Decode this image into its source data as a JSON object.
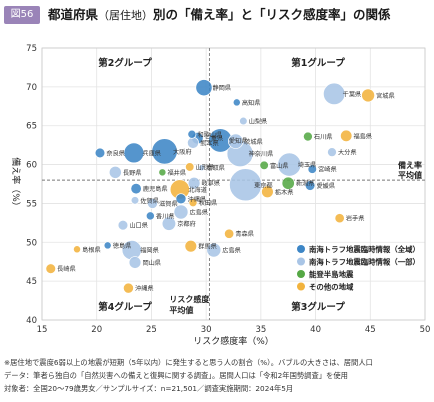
{
  "header": {
    "fig_label": "図56",
    "title_main": "都道府県",
    "title_paren": "（居住地）",
    "title_rest": "別の「備え率」と「リスク感度率」の関係"
  },
  "chart_data": {
    "type": "scatter",
    "title": "都道府県（居住地）別の「備え率」と「リスク感度率」の関係",
    "xlabel": "リスク感度率（%）",
    "ylabel": "備え率（%）",
    "xlim": [
      15,
      50
    ],
    "ylim": [
      40,
      75
    ],
    "xticks": [
      15,
      20,
      25,
      30,
      35,
      40,
      45,
      50
    ],
    "yticks": [
      40,
      45,
      50,
      55,
      60,
      65,
      70,
      75
    ],
    "grid": true,
    "legend_position": "bottom-right",
    "reference_lines": {
      "x": {
        "value": 30.3,
        "label_line1": "リスク感度",
        "label_line2": "平均値"
      },
      "y": {
        "value": 58,
        "label_line1": "備え率",
        "label_line2": "平均値"
      }
    },
    "quadrants": {
      "top_left": "第2グループ",
      "top_right": "第1グループ",
      "bottom_left": "第4グループ",
      "bottom_right": "第3グループ"
    },
    "series": [
      {
        "name": "南海トラフ地震臨時情報（全域）",
        "color": "#3d86c6"
      },
      {
        "name": "南海トラフ地震臨時情報（一部）",
        "color": "#a9c5e6"
      },
      {
        "name": "能登半島地震",
        "color": "#55a845"
      },
      {
        "name": "その他の地域",
        "color": "#f2b33d"
      }
    ],
    "points": [
      {
        "name": "静岡県",
        "x": 29.8,
        "y": 69.9,
        "size": 3.6,
        "group": 0
      },
      {
        "name": "千葉県",
        "x": 41.7,
        "y": 69.1,
        "size": 6.3,
        "group": 1
      },
      {
        "name": "宮城県",
        "x": 44.8,
        "y": 68.9,
        "size": 2.3,
        "group": 3
      },
      {
        "name": "高知県",
        "x": 32.8,
        "y": 68.0,
        "size": 0.7,
        "group": 0
      },
      {
        "name": "山梨県",
        "x": 33.4,
        "y": 65.6,
        "size": 0.8,
        "group": 1
      },
      {
        "name": "石川県",
        "x": 39.3,
        "y": 63.6,
        "size": 1.1,
        "group": 2
      },
      {
        "name": "福島県",
        "x": 42.8,
        "y": 63.7,
        "size": 1.8,
        "group": 3
      },
      {
        "name": "茨城県",
        "x": 32.7,
        "y": 63.0,
        "size": 2.9,
        "group": 1
      },
      {
        "name": "大分県",
        "x": 41.5,
        "y": 61.6,
        "size": 1.1,
        "group": 1
      },
      {
        "name": "和歌山県",
        "x": 28.7,
        "y": 63.9,
        "size": 0.9,
        "group": 0
      },
      {
        "name": "三重県",
        "x": 29.2,
        "y": 63.4,
        "size": 1.8,
        "group": 0
      },
      {
        "name": "熊本県",
        "x": 28.8,
        "y": 62.8,
        "size": 1.7,
        "group": 1
      },
      {
        "name": "大阪府",
        "x": 26.2,
        "y": 61.7,
        "size": 8.8,
        "group": 0
      },
      {
        "name": "愛知県",
        "x": 31.3,
        "y": 63.1,
        "size": 7.5,
        "group": 0
      },
      {
        "name": "奈良県",
        "x": 20.3,
        "y": 61.5,
        "size": 1.3,
        "group": 0
      },
      {
        "name": "兵庫県",
        "x": 23.4,
        "y": 61.5,
        "size": 5.4,
        "group": 0
      },
      {
        "name": "神奈川県",
        "x": 33.1,
        "y": 61.4,
        "size": 9.2,
        "group": 1
      },
      {
        "name": "埼玉県",
        "x": 37.6,
        "y": 60.0,
        "size": 7.3,
        "group": 1
      },
      {
        "name": "宮崎県",
        "x": 39.7,
        "y": 59.4,
        "size": 1.0,
        "group": 0
      },
      {
        "name": "富山県",
        "x": 35.3,
        "y": 59.9,
        "size": 1.0,
        "group": 2
      },
      {
        "name": "長野県",
        "x": 21.7,
        "y": 59.0,
        "size": 2.0,
        "group": 1
      },
      {
        "name": "東京都",
        "x": 33.6,
        "y": 57.4,
        "size": 14.0,
        "group": 1
      },
      {
        "name": "愛媛県",
        "x": 39.5,
        "y": 57.3,
        "size": 1.3,
        "group": 0
      },
      {
        "name": "新潟県",
        "x": 37.5,
        "y": 57.6,
        "size": 2.1,
        "group": 2
      },
      {
        "name": "栃木県",
        "x": 35.6,
        "y": 56.5,
        "size": 1.9,
        "group": 3
      },
      {
        "name": "福井県",
        "x": 26.0,
        "y": 59.0,
        "size": 0.7,
        "group": 2
      },
      {
        "name": "山形県",
        "x": 28.5,
        "y": 59.7,
        "size": 1.0,
        "group": 3
      },
      {
        "name": "鳥取県",
        "x": 29.6,
        "y": 59.6,
        "size": 0.5,
        "group": 1
      },
      {
        "name": "岐阜県",
        "x": 28.9,
        "y": 57.6,
        "size": 1.9,
        "group": 1
      },
      {
        "name": "北海道",
        "x": 27.6,
        "y": 56.8,
        "size": 5.1,
        "group": 3
      },
      {
        "name": "沖縄県",
        "x": 27.7,
        "y": 55.6,
        "size": 1.4,
        "group": 0
      },
      {
        "name": "秋田県",
        "x": 28.8,
        "y": 55.1,
        "size": 0.9,
        "group": 3
      },
      {
        "name": "滋賀県",
        "x": 25.1,
        "y": 55.0,
        "size": 1.4,
        "group": 1
      },
      {
        "name": "広島県",
        "x": 27.7,
        "y": 53.9,
        "size": 2.7,
        "group": 1
      },
      {
        "name": "鹿児島県",
        "x": 23.6,
        "y": 56.9,
        "size": 1.5,
        "group": 0
      },
      {
        "name": "佐賀県",
        "x": 23.5,
        "y": 55.4,
        "size": 0.8,
        "group": 1
      },
      {
        "name": "香川県",
        "x": 24.9,
        "y": 53.4,
        "size": 0.9,
        "group": 0
      },
      {
        "name": "京都府",
        "x": 26.6,
        "y": 52.4,
        "size": 2.5,
        "group": 1
      },
      {
        "name": "山口県",
        "x": 22.4,
        "y": 52.2,
        "size": 1.3,
        "group": 1
      },
      {
        "name": "岩手県",
        "x": 42.2,
        "y": 53.1,
        "size": 1.2,
        "group": 3
      },
      {
        "name": "青森県",
        "x": 32.1,
        "y": 51.1,
        "size": 1.2,
        "group": 3
      },
      {
        "name": "徳島県",
        "x": 21.0,
        "y": 49.6,
        "size": 0.7,
        "group": 0
      },
      {
        "name": "福岡県",
        "x": 23.2,
        "y": 49.0,
        "size": 5.1,
        "group": 1
      },
      {
        "name": "岡山県",
        "x": 23.5,
        "y": 47.4,
        "size": 1.9,
        "group": 1
      },
      {
        "name": "群馬県",
        "x": 28.6,
        "y": 49.5,
        "size": 1.9,
        "group": 3
      },
      {
        "name": "広島県",
        "x": 30.7,
        "y": 49.0,
        "size": 2.7,
        "group": 1
      },
      {
        "name": "島根県",
        "x": 18.2,
        "y": 49.1,
        "size": 0.7,
        "group": 3
      },
      {
        "name": "長崎県",
        "x": 15.8,
        "y": 46.6,
        "size": 1.3,
        "group": 3
      },
      {
        "name": "沖縄県",
        "x": 22.9,
        "y": 44.1,
        "size": 1.4,
        "group": 3
      }
    ]
  },
  "notes": [
    "※居住地で震度6弱以上の地震が短期（5年以内）に発生すると思う人の割合（%）。バブルの大きさは、居間人口",
    "データ：筆者ら独自の「自然災害への備えと復興に関する調査」。居間人口は「令和2年国勢調査」を使用",
    "対象者：全国20〜79歳男女／サンプルサイズ：n=21,501／調査実施期間：2024年5月"
  ]
}
